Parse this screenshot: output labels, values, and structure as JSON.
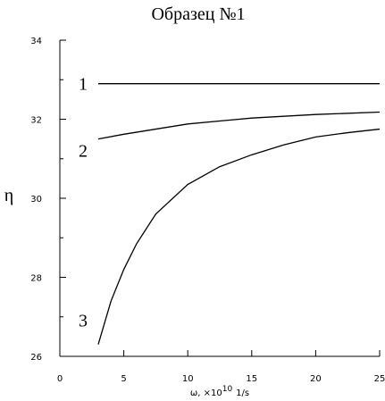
{
  "chart_data": {
    "type": "line",
    "title": "Образец №1",
    "ylabel": "η",
    "xlabel": "ω, ×10",
    "xlabel_exponent": "10",
    "xlabel_unit": "1/s",
    "xlim": [
      0,
      25
    ],
    "xticks": [
      0,
      5,
      10,
      15,
      20,
      25
    ],
    "ylim": [
      26,
      34
    ],
    "yticks": [
      26,
      28,
      30,
      32,
      34
    ],
    "yminor_ticks": [
      27,
      29,
      31,
      33
    ],
    "color": "#000000",
    "series": [
      {
        "name": "1",
        "x": [
          3,
          25
        ],
        "values": [
          32.9,
          32.9
        ]
      },
      {
        "name": "2",
        "x": [
          3,
          5,
          10,
          15,
          20,
          25
        ],
        "values": [
          31.5,
          31.62,
          31.88,
          32.03,
          32.12,
          32.18
        ]
      },
      {
        "name": "3",
        "x": [
          3,
          4,
          5,
          6,
          7.5,
          10,
          12.5,
          15,
          17.5,
          20,
          22.5,
          25
        ],
        "values": [
          26.3,
          27.4,
          28.2,
          28.85,
          29.6,
          30.35,
          30.8,
          31.1,
          31.35,
          31.55,
          31.66,
          31.75
        ]
      }
    ]
  }
}
